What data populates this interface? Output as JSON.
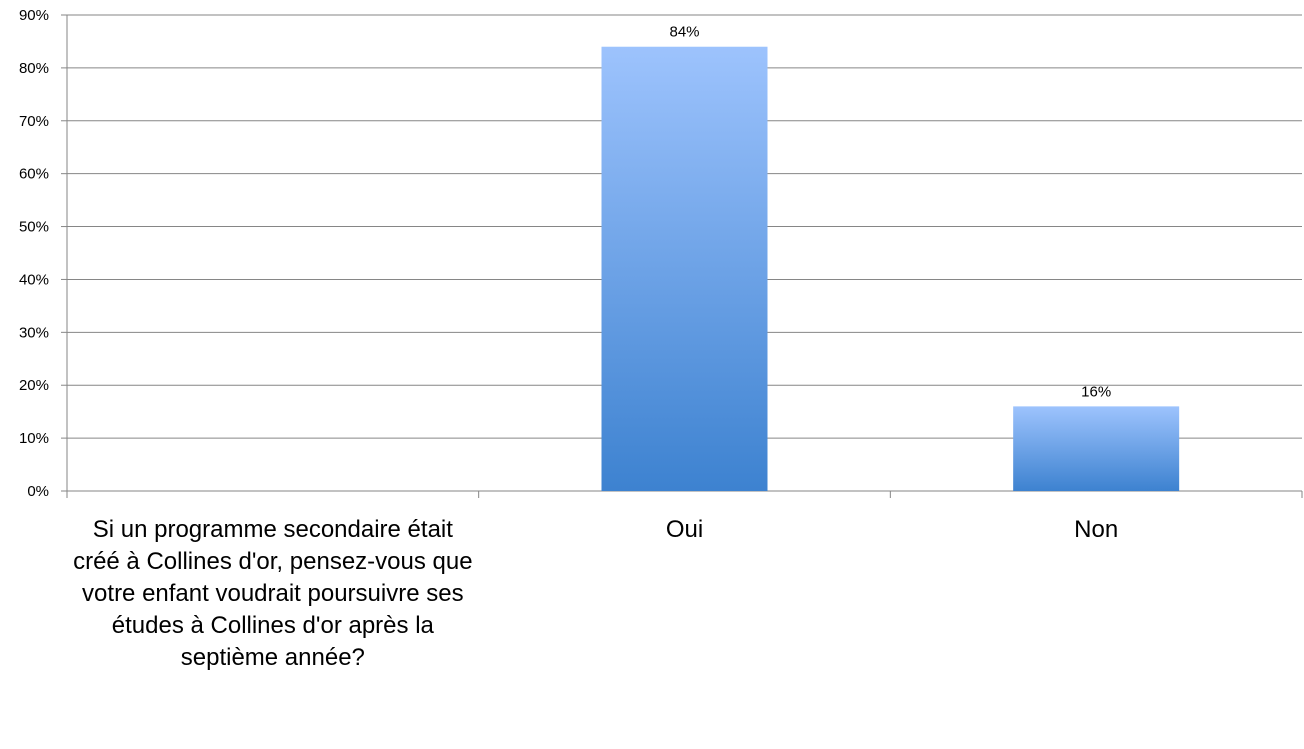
{
  "chart_data": {
    "type": "bar",
    "categories": [
      "Si un programme secondaire était créé à Collines d'or, pensez-vous que votre enfant voudrait poursuivre ses études à Collines d'or après la septième année?",
      "Oui",
      "Non"
    ],
    "values": [
      null,
      84,
      16
    ],
    "data_labels": [
      "",
      "84%",
      "16%"
    ],
    "yticks": [
      "0%",
      "10%",
      "20%",
      "30%",
      "40%",
      "50%",
      "60%",
      "70%",
      "80%",
      "90%"
    ],
    "ylim": [
      0,
      90
    ],
    "ytick_step": 10,
    "title": "",
    "xlabel": "",
    "ylabel": "",
    "grid": true,
    "legend": "none",
    "colors": {
      "bar_top": "#9dc3fd",
      "bar_bottom": "#3d82d0",
      "grid": "#868686",
      "axis": "#868686"
    }
  }
}
